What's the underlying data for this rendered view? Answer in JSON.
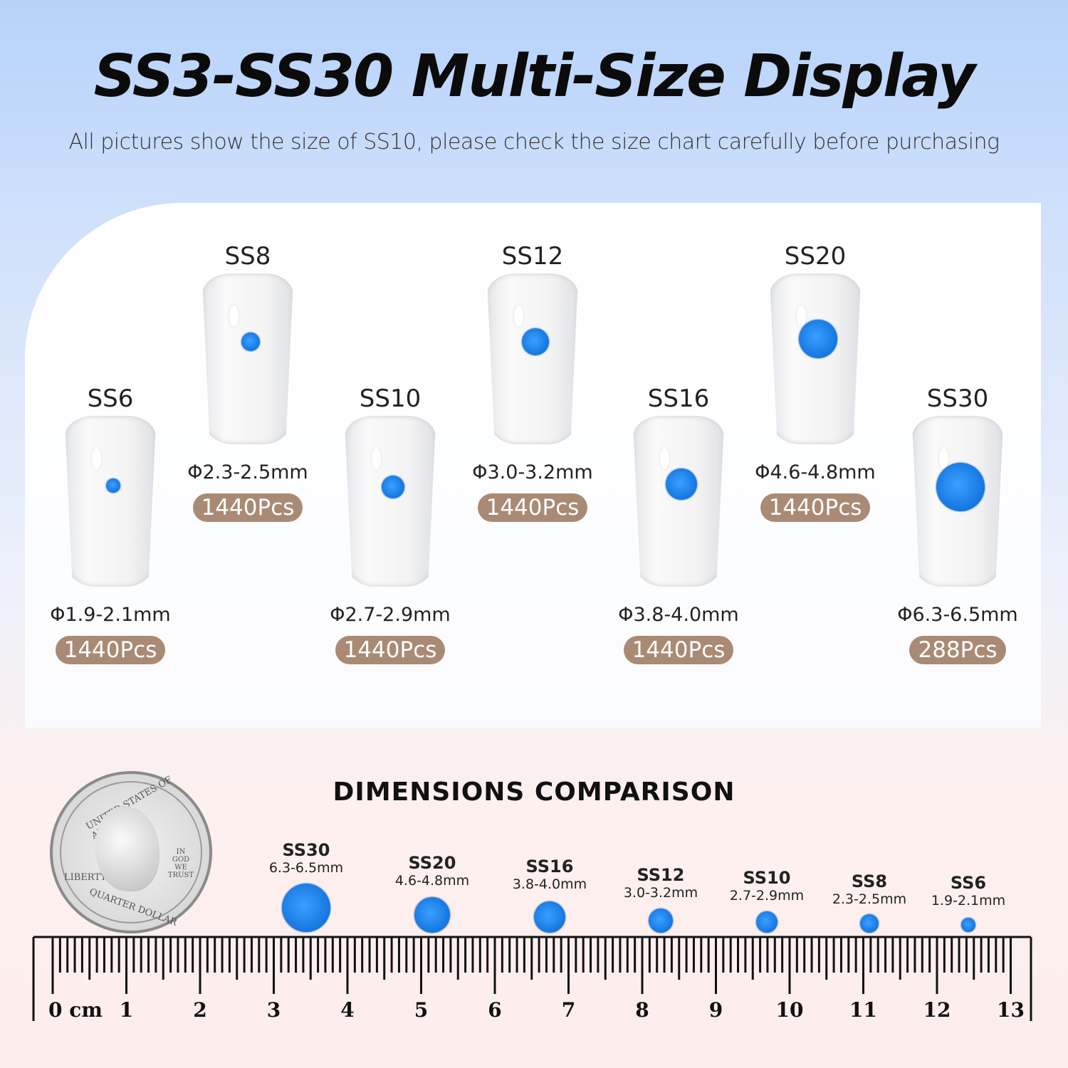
{
  "header": {
    "title": "SS3-SS30 Multi-Size Display",
    "subtitle": "All pictures show the size of SS10, please check the size chart carefully  before purchasing"
  },
  "sizes": [
    {
      "name": "SS6",
      "diameter": "Φ1.9-2.1mm",
      "count": "1440Pcs"
    },
    {
      "name": "SS8",
      "diameter": "Φ2.3-2.5mm",
      "count": "1440Pcs"
    },
    {
      "name": "SS10",
      "diameter": "Φ2.7-2.9mm",
      "count": "1440Pcs"
    },
    {
      "name": "SS12",
      "diameter": "Φ3.0-3.2mm",
      "count": "1440Pcs"
    },
    {
      "name": "SS16",
      "diameter": "Φ3.8-4.0mm",
      "count": "1440Pcs"
    },
    {
      "name": "SS20",
      "diameter": "Φ4.6-4.8mm",
      "count": "1440Pcs"
    },
    {
      "name": "SS30",
      "diameter": "Φ6.3-6.5mm",
      "count": "288Pcs"
    }
  ],
  "comparison": {
    "title": "DIMENSIONS COMPARISON",
    "items": [
      {
        "name": "SS30",
        "size": "6.3-6.5mm"
      },
      {
        "name": "SS20",
        "size": "4.6-4.8mm"
      },
      {
        "name": "SS16",
        "size": "3.8-4.0mm"
      },
      {
        "name": "SS12",
        "size": "3.0-3.2mm"
      },
      {
        "name": "SS10",
        "size": "2.7-2.9mm"
      },
      {
        "name": "SS8",
        "size": "2.3-2.5mm"
      },
      {
        "name": "SS6",
        "size": "1.9-2.1mm"
      }
    ]
  },
  "coin": {
    "top": "UNITED STATES OF AMERICA",
    "motto": "IN GOD WE TRUST",
    "left": "LIBERTY",
    "bottom": "QUARTER DOLLAR"
  },
  "ruler": {
    "unit": "cm",
    "labels": [
      "0 cm",
      "1",
      "2",
      "3",
      "4",
      "5",
      "6",
      "7",
      "8",
      "9",
      "10",
      "11",
      "12",
      "13"
    ]
  },
  "colors": {
    "gem": "#1476e0",
    "badge": "#a98a74"
  }
}
